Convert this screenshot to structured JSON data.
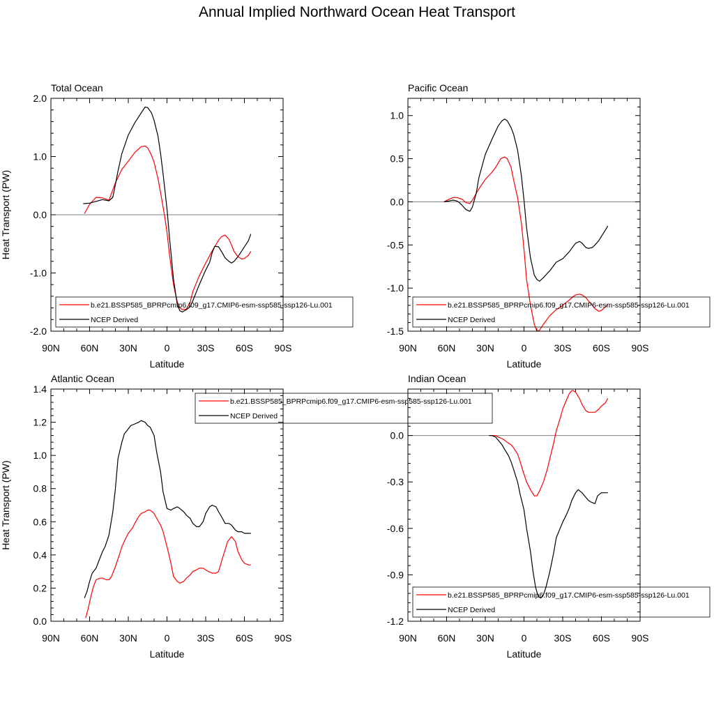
{
  "title": "Annual Implied Northward Ocean Heat Transport",
  "colors": {
    "model": "#ff0000",
    "obs": "#000000",
    "zero_line": "#7f7f7f"
  },
  "chart_data": [
    {
      "type": "line",
      "title": "Total Ocean",
      "xlabel": "Latitude",
      "ylabel": "Heat Transport (PW)",
      "xlim": [
        90,
        -90
      ],
      "ylim": [
        -2.0,
        2.0
      ],
      "xticks": [
        90,
        60,
        30,
        0,
        -30,
        -60,
        -90
      ],
      "xtick_labels": [
        "90N",
        "60N",
        "30N",
        "0",
        "30S",
        "60S",
        "90S"
      ],
      "yticks": [
        -2.0,
        -1.0,
        0.0,
        1.0,
        2.0
      ],
      "ytick_labels": [
        "-2.0",
        "-1.0",
        "0.0",
        "1.0",
        "2.0"
      ],
      "zero_line": true,
      "legend_position": "bottom",
      "series": [
        {
          "name": "b.e21.BSSP585_BPRPcmip6.f09_g17.CMIP6-esm-ssp585-ssp126-Lu.001",
          "color": "#ff0000",
          "x": [
            64,
            60,
            55,
            50,
            45,
            40,
            35,
            30,
            25,
            20,
            17,
            15,
            12,
            10,
            7,
            5,
            2,
            0,
            -2,
            -5,
            -8,
            -10,
            -12,
            -15,
            -18,
            -20,
            -25,
            -30,
            -35,
            -40,
            -42,
            -45,
            -48,
            -50,
            -52,
            -55,
            -58,
            -60,
            -63,
            -65
          ],
          "y": [
            0.02,
            0.18,
            0.3,
            0.29,
            0.25,
            0.55,
            0.78,
            0.92,
            1.07,
            1.17,
            1.18,
            1.15,
            1.02,
            0.9,
            0.62,
            0.38,
            0.0,
            -0.3,
            -0.7,
            -1.2,
            -1.5,
            -1.6,
            -1.63,
            -1.62,
            -1.5,
            -1.32,
            -1.05,
            -0.83,
            -0.62,
            -0.44,
            -0.38,
            -0.35,
            -0.42,
            -0.52,
            -0.63,
            -0.72,
            -0.76,
            -0.75,
            -0.7,
            -0.63
          ]
        },
        {
          "name": "NCEP Derived",
          "color": "#000000",
          "x": [
            65,
            60,
            55,
            50,
            45,
            42,
            40,
            38,
            35,
            30,
            25,
            22,
            20,
            17,
            15,
            12,
            10,
            7,
            5,
            3,
            0,
            -2,
            -5,
            -8,
            -10,
            -12,
            -15,
            -18,
            -20,
            -25,
            -30,
            -33,
            -35,
            -37,
            -40,
            -43,
            -45,
            -48,
            -50,
            -52,
            -55,
            -58,
            -60,
            -63,
            -65
          ],
          "y": [
            0.19,
            0.2,
            0.23,
            0.26,
            0.24,
            0.3,
            0.52,
            0.75,
            1.05,
            1.37,
            1.58,
            1.68,
            1.75,
            1.85,
            1.84,
            1.75,
            1.62,
            1.35,
            1.05,
            0.7,
            0.1,
            -0.4,
            -1.1,
            -1.55,
            -1.65,
            -1.67,
            -1.63,
            -1.58,
            -1.48,
            -1.2,
            -0.95,
            -0.82,
            -0.65,
            -0.54,
            -0.55,
            -0.66,
            -0.74,
            -0.8,
            -0.83,
            -0.8,
            -0.72,
            -0.62,
            -0.55,
            -0.45,
            -0.33
          ]
        }
      ]
    },
    {
      "type": "line",
      "title": "Pacific Ocean",
      "xlabel": "Latitude",
      "ylabel": "",
      "xlim": [
        90,
        -90
      ],
      "ylim": [
        -1.5,
        1.2
      ],
      "xticks": [
        90,
        60,
        30,
        0,
        -30,
        -60,
        -90
      ],
      "xtick_labels": [
        "90N",
        "60N",
        "30N",
        "0",
        "30S",
        "60S",
        "90S"
      ],
      "yticks": [
        -1.5,
        -1.0,
        -0.5,
        0.0,
        0.5,
        1.0
      ],
      "ytick_labels": [
        "-1.5",
        "-1.0",
        "-0.5",
        "0.0",
        "0.5",
        "1.0"
      ],
      "zero_line": true,
      "legend_position": "bottom",
      "series": [
        {
          "name": "b.e21.BSSP585_BPRPcmip6.f09_g17.CMIP6-esm-ssp585-ssp126-Lu.001",
          "color": "#ff0000",
          "x": [
            62,
            58,
            55,
            52,
            48,
            45,
            42,
            40,
            35,
            30,
            25,
            22,
            20,
            18,
            15,
            13,
            10,
            8,
            5,
            2,
            0,
            -2,
            -5,
            -8,
            -10,
            -12,
            -15,
            -18,
            -20,
            -25,
            -30,
            -35,
            -38,
            -40,
            -43,
            -45,
            -48,
            -50,
            -53,
            -55,
            -58,
            -60,
            -63,
            -65
          ],
          "y": [
            0.0,
            0.03,
            0.05,
            0.05,
            0.03,
            -0.01,
            -0.02,
            0.02,
            0.15,
            0.26,
            0.34,
            0.4,
            0.45,
            0.5,
            0.52,
            0.5,
            0.4,
            0.25,
            0.05,
            -0.25,
            -0.55,
            -0.9,
            -1.2,
            -1.42,
            -1.5,
            -1.49,
            -1.42,
            -1.36,
            -1.32,
            -1.25,
            -1.2,
            -1.14,
            -1.1,
            -1.08,
            -1.07,
            -1.08,
            -1.11,
            -1.15,
            -1.2,
            -1.24,
            -1.27,
            -1.26,
            -1.22,
            -1.19
          ]
        },
        {
          "name": "NCEP Derived",
          "color": "#000000",
          "x": [
            62,
            58,
            55,
            52,
            50,
            48,
            45,
            42,
            40,
            37,
            35,
            30,
            25,
            20,
            17,
            15,
            13,
            10,
            8,
            5,
            2,
            0,
            -2,
            -5,
            -8,
            -10,
            -12,
            -15,
            -18,
            -20,
            -25,
            -30,
            -35,
            -40,
            -43,
            -45,
            -48,
            -50,
            -53,
            -55,
            -58,
            -60,
            -63,
            -65
          ],
          "y": [
            0.0,
            0.01,
            0.02,
            0.01,
            -0.01,
            -0.04,
            -0.09,
            -0.11,
            -0.06,
            0.1,
            0.28,
            0.55,
            0.72,
            0.88,
            0.94,
            0.96,
            0.94,
            0.86,
            0.78,
            0.6,
            0.3,
            0.02,
            -0.3,
            -0.65,
            -0.85,
            -0.9,
            -0.92,
            -0.88,
            -0.83,
            -0.8,
            -0.7,
            -0.66,
            -0.58,
            -0.48,
            -0.46,
            -0.48,
            -0.53,
            -0.54,
            -0.53,
            -0.5,
            -0.45,
            -0.4,
            -0.33,
            -0.28
          ]
        }
      ]
    },
    {
      "type": "line",
      "title": "Atlantic Ocean",
      "xlabel": "Latitude",
      "ylabel": "Heat Transport (PW)",
      "xlim": [
        90,
        -90
      ],
      "ylim": [
        0.0,
        1.4
      ],
      "xticks": [
        90,
        60,
        30,
        0,
        -30,
        -60,
        -90
      ],
      "xtick_labels": [
        "90N",
        "60N",
        "30N",
        "0",
        "30S",
        "60S",
        "90S"
      ],
      "yticks": [
        0.0,
        0.2,
        0.4,
        0.6,
        0.8,
        1.0,
        1.2,
        1.4
      ],
      "ytick_labels": [
        "0.0",
        "0.2",
        "0.4",
        "0.6",
        "0.8",
        "1.0",
        "1.2",
        "1.4"
      ],
      "zero_line": false,
      "legend_position": "top-right",
      "series": [
        {
          "name": "b.e21.BSSP585_BPRPcmip6.f09_g17.CMIP6-esm-ssp585-ssp126-Lu.001",
          "color": "#ff0000",
          "x": [
            63,
            61,
            59,
            57,
            55,
            52,
            50,
            47,
            45,
            43,
            40,
            37,
            35,
            32,
            30,
            27,
            25,
            22,
            20,
            17,
            15,
            13,
            10,
            8,
            5,
            3,
            0,
            -3,
            -5,
            -8,
            -10,
            -13,
            -15,
            -18,
            -20,
            -23,
            -25,
            -28,
            -30,
            -32,
            -35,
            -38,
            -40,
            -43,
            -45,
            -47,
            -50,
            -53,
            -55,
            -58,
            -60,
            -63,
            -65
          ],
          "y": [
            0.02,
            0.08,
            0.15,
            0.21,
            0.25,
            0.26,
            0.26,
            0.25,
            0.25,
            0.27,
            0.33,
            0.4,
            0.45,
            0.5,
            0.53,
            0.56,
            0.59,
            0.63,
            0.65,
            0.66,
            0.67,
            0.67,
            0.65,
            0.62,
            0.58,
            0.54,
            0.45,
            0.35,
            0.27,
            0.24,
            0.23,
            0.24,
            0.26,
            0.28,
            0.3,
            0.31,
            0.32,
            0.32,
            0.31,
            0.3,
            0.29,
            0.29,
            0.3,
            0.38,
            0.43,
            0.48,
            0.51,
            0.48,
            0.42,
            0.37,
            0.35,
            0.34,
            0.34
          ]
        },
        {
          "name": "NCEP Derived",
          "color": "#000000",
          "x": [
            64,
            62,
            60,
            58,
            55,
            53,
            50,
            48,
            45,
            42,
            40,
            38,
            35,
            33,
            30,
            28,
            25,
            22,
            20,
            17,
            15,
            13,
            10,
            8,
            5,
            3,
            0,
            -3,
            -5,
            -8,
            -10,
            -13,
            -15,
            -18,
            -20,
            -23,
            -25,
            -28,
            -30,
            -33,
            -35,
            -38,
            -40,
            -43,
            -45,
            -48,
            -50,
            -53,
            -55,
            -58,
            -60,
            -63,
            -65
          ],
          "y": [
            0.14,
            0.18,
            0.24,
            0.29,
            0.32,
            0.36,
            0.42,
            0.45,
            0.52,
            0.66,
            0.8,
            0.98,
            1.08,
            1.13,
            1.16,
            1.18,
            1.19,
            1.2,
            1.21,
            1.2,
            1.18,
            1.17,
            1.12,
            1.02,
            0.9,
            0.78,
            0.68,
            0.67,
            0.68,
            0.69,
            0.68,
            0.66,
            0.64,
            0.62,
            0.59,
            0.57,
            0.57,
            0.6,
            0.65,
            0.69,
            0.7,
            0.69,
            0.66,
            0.62,
            0.59,
            0.59,
            0.58,
            0.55,
            0.54,
            0.54,
            0.53,
            0.53,
            0.53
          ]
        }
      ]
    },
    {
      "type": "line",
      "title": "Indian Ocean",
      "xlabel": "Latitude",
      "ylabel": "",
      "xlim": [
        90,
        -90
      ],
      "ylim": [
        -1.2,
        0.3
      ],
      "xticks": [
        90,
        60,
        30,
        0,
        -30,
        -60,
        -90
      ],
      "xtick_labels": [
        "90N",
        "60N",
        "30N",
        "0",
        "30S",
        "60S",
        "90S"
      ],
      "yticks": [
        -1.2,
        -0.9,
        -0.6,
        -0.3,
        0.0
      ],
      "ytick_labels": [
        "-1.2",
        "-0.9",
        "-0.6",
        "-0.3",
        "0.0"
      ],
      "zero_line": true,
      "legend_position": "bottom",
      "series": [
        {
          "name": "b.e21.BSSP585_BPRPcmip6.f09_g17.CMIP6-esm-ssp585-ssp126-Lu.001",
          "color": "#ff0000",
          "x": [
            25,
            22,
            20,
            17,
            15,
            12,
            10,
            8,
            5,
            3,
            0,
            -2,
            -5,
            -8,
            -10,
            -12,
            -15,
            -18,
            -20,
            -23,
            -25,
            -28,
            -30,
            -33,
            -35,
            -37,
            -38,
            -40,
            -43,
            -45,
            -48,
            -50,
            -53,
            -55,
            -58,
            -60,
            -63,
            -65
          ],
          "y": [
            0.0,
            0.0,
            -0.01,
            -0.02,
            -0.03,
            -0.05,
            -0.06,
            -0.08,
            -0.12,
            -0.17,
            -0.25,
            -0.3,
            -0.35,
            -0.39,
            -0.39,
            -0.36,
            -0.3,
            -0.22,
            -0.15,
            -0.05,
            0.03,
            0.11,
            0.17,
            0.23,
            0.27,
            0.29,
            0.29,
            0.28,
            0.24,
            0.2,
            0.16,
            0.15,
            0.15,
            0.15,
            0.17,
            0.19,
            0.21,
            0.24
          ]
        },
        {
          "name": "NCEP Derived",
          "color": "#000000",
          "x": [
            27,
            25,
            22,
            20,
            17,
            15,
            12,
            10,
            8,
            5,
            3,
            0,
            -2,
            -5,
            -7,
            -9,
            -11,
            -13,
            -15,
            -17,
            -20,
            -23,
            -25,
            -28,
            -30,
            -33,
            -35,
            -37,
            -40,
            -42,
            -45,
            -48,
            -50,
            -52,
            -55,
            -57,
            -60,
            -63,
            -65
          ],
          "y": [
            0.0,
            0.0,
            -0.01,
            -0.03,
            -0.06,
            -0.09,
            -0.13,
            -0.17,
            -0.22,
            -0.3,
            -0.38,
            -0.48,
            -0.6,
            -0.75,
            -0.88,
            -0.98,
            -1.04,
            -1.05,
            -1.03,
            -0.98,
            -0.88,
            -0.76,
            -0.66,
            -0.6,
            -0.56,
            -0.51,
            -0.47,
            -0.42,
            -0.37,
            -0.35,
            -0.37,
            -0.4,
            -0.42,
            -0.43,
            -0.44,
            -0.39,
            -0.37,
            -0.37,
            -0.37
          ]
        }
      ]
    }
  ]
}
